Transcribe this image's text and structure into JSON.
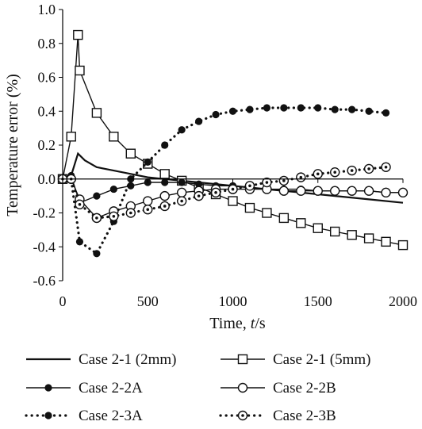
{
  "chart_data": {
    "type": "line",
    "ylabel": "Temperature error (%)",
    "xlabel_prefix": "Time, ",
    "xlabel_var": "t",
    "xlabel_unit": "/s",
    "xlim": [
      0,
      2000
    ],
    "ylim": [
      -0.6,
      1.0
    ],
    "xticks": [
      "0",
      "500",
      "1000",
      "1500",
      "2000"
    ],
    "yticks": [
      "1.0",
      "0.8",
      "0.6",
      "0.4",
      "0.2",
      "0.0",
      "-0.2",
      "-0.4",
      "-0.6"
    ],
    "grid": false,
    "legend_position": "bottom",
    "series": [
      {
        "name": "Case 2-1 (2mm)",
        "line": "solid",
        "marker": "none",
        "x": [
          0,
          50,
          90,
          130,
          200,
          300,
          400,
          500,
          600,
          800,
          1000,
          1200,
          1400,
          1600,
          1800,
          2000
        ],
        "y": [
          0.0,
          0.02,
          0.15,
          0.11,
          0.07,
          0.05,
          0.03,
          0.01,
          0.0,
          -0.02,
          -0.04,
          -0.06,
          -0.08,
          -0.1,
          -0.12,
          -0.14
        ]
      },
      {
        "name": "Case 2-1 (5mm)",
        "line": "solid",
        "marker": "open-square",
        "x": [
          0,
          50,
          90,
          100,
          200,
          300,
          400,
          500,
          600,
          700,
          800,
          900,
          1000,
          1100,
          1200,
          1300,
          1400,
          1500,
          1600,
          1700,
          1800,
          1900,
          2000
        ],
        "y": [
          0.0,
          0.25,
          0.85,
          0.64,
          0.39,
          0.25,
          0.15,
          0.09,
          0.03,
          -0.01,
          -0.05,
          -0.09,
          -0.13,
          -0.17,
          -0.2,
          -0.23,
          -0.26,
          -0.29,
          -0.31,
          -0.33,
          -0.35,
          -0.37,
          -0.39
        ]
      },
      {
        "name": "Case 2-2A",
        "line": "solid",
        "marker": "filled-circle",
        "x": [
          0,
          50,
          100,
          200,
          300,
          400,
          500,
          600,
          700,
          800,
          900,
          1000,
          1100,
          1200,
          1300,
          1400,
          1500,
          1600,
          1700,
          1800,
          1900,
          2000
        ],
        "y": [
          0.0,
          0.02,
          -0.14,
          -0.1,
          -0.06,
          -0.04,
          -0.02,
          -0.02,
          -0.02,
          -0.03,
          -0.04,
          -0.04,
          -0.05,
          -0.06,
          -0.06,
          -0.06,
          -0.07,
          -0.07,
          -0.07,
          -0.07,
          -0.08,
          -0.08
        ]
      },
      {
        "name": "Case 2-2B",
        "line": "solid",
        "marker": "open-circle",
        "x": [
          0,
          50,
          100,
          200,
          300,
          400,
          500,
          600,
          700,
          800,
          900,
          1000,
          1100,
          1200,
          1300,
          1400,
          1500,
          1600,
          1700,
          1800,
          1900,
          2000
        ],
        "y": [
          0.0,
          0.0,
          -0.12,
          -0.23,
          -0.19,
          -0.16,
          -0.13,
          -0.1,
          -0.08,
          -0.07,
          -0.06,
          -0.06,
          -0.06,
          -0.06,
          -0.07,
          -0.07,
          -0.07,
          -0.07,
          -0.07,
          -0.07,
          -0.08,
          -0.08
        ]
      },
      {
        "name": "Case 2-3A",
        "line": "dotted",
        "marker": "filled-circle",
        "x": [
          0,
          50,
          100,
          200,
          300,
          400,
          500,
          600,
          700,
          800,
          900,
          1000,
          1100,
          1200,
          1300,
          1400,
          1500,
          1600,
          1700,
          1800,
          1900
        ],
        "y": [
          0.0,
          0.0,
          -0.37,
          -0.44,
          -0.25,
          0.0,
          0.1,
          0.2,
          0.29,
          0.34,
          0.38,
          0.4,
          0.41,
          0.42,
          0.42,
          0.42,
          0.42,
          0.41,
          0.41,
          0.4,
          0.39
        ]
      },
      {
        "name": "Case 2-3B",
        "line": "dotted",
        "marker": "dot-circle",
        "x": [
          0,
          50,
          100,
          200,
          300,
          400,
          500,
          600,
          700,
          800,
          900,
          1000,
          1100,
          1200,
          1300,
          1400,
          1500,
          1600,
          1700,
          1800,
          1900
        ],
        "y": [
          0.0,
          0.0,
          -0.15,
          -0.23,
          -0.22,
          -0.2,
          -0.18,
          -0.16,
          -0.13,
          -0.1,
          -0.08,
          -0.06,
          -0.04,
          -0.02,
          -0.01,
          0.01,
          0.03,
          0.04,
          0.05,
          0.06,
          0.07
        ]
      }
    ]
  }
}
